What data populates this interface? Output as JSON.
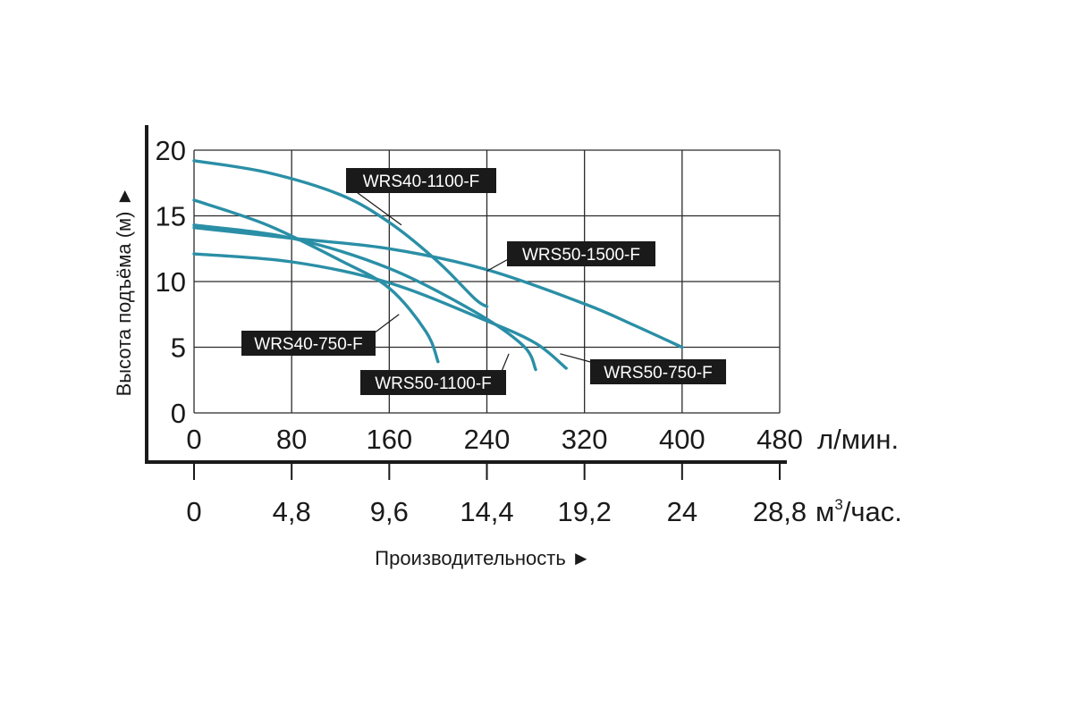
{
  "chart_data": {
    "type": "line",
    "title": "",
    "xlabel": "Производительность ►",
    "ylabel": "Высота подъёма (м) ►",
    "x_unit": "л/мин.",
    "x2_unit_base": "м",
    "x2_unit_sup": "3",
    "x2_unit_rest": "/час.",
    "xlim": [
      0,
      480
    ],
    "ylim": [
      0,
      20
    ],
    "x_ticks": [
      0,
      80,
      160,
      240,
      320,
      400,
      480
    ],
    "x_tick_labels": [
      "0",
      "80",
      "160",
      "240",
      "320",
      "400",
      "480"
    ],
    "x2_tick_labels": [
      "0",
      "4,8",
      "9,6",
      "14,4",
      "19,2",
      "24",
      "28,8"
    ],
    "y_ticks": [
      0,
      5,
      10,
      15,
      20
    ],
    "y_tick_labels": [
      "0",
      "5",
      "10",
      "15",
      "20"
    ],
    "grid": true,
    "line_color": "#2a8fa6",
    "label_bg": "#1a1a1a",
    "series": [
      {
        "name": "WRS40-1100-F",
        "points": [
          [
            0,
            19.2
          ],
          [
            60,
            18.3
          ],
          [
            120,
            16.6
          ],
          [
            160,
            14.5
          ],
          [
            200,
            11.5
          ],
          [
            230,
            8.7
          ],
          [
            240,
            8.1
          ]
        ],
        "label_anchor": [
          170,
          14.3
        ]
      },
      {
        "name": "WRS50-1500-F",
        "points": [
          [
            0,
            14.1
          ],
          [
            80,
            13.3
          ],
          [
            160,
            12.5
          ],
          [
            240,
            10.9
          ],
          [
            320,
            8.3
          ],
          [
            360,
            6.7
          ],
          [
            400,
            5.0
          ]
        ],
        "label_anchor": [
          240,
          10.8
        ]
      },
      {
        "name": "WRS40-750-F",
        "points": [
          [
            0,
            16.2
          ],
          [
            60,
            14.3
          ],
          [
            120,
            11.6
          ],
          [
            160,
            9.5
          ],
          [
            190,
            6.2
          ],
          [
            200,
            3.9
          ]
        ],
        "label_anchor": [
          168,
          7.5
        ]
      },
      {
        "name": "WRS50-1100-F",
        "points": [
          [
            0,
            14.3
          ],
          [
            80,
            13.3
          ],
          [
            160,
            11.0
          ],
          [
            230,
            7.7
          ],
          [
            270,
            5.1
          ],
          [
            280,
            3.3
          ]
        ],
        "label_anchor": [
          258,
          4.5
        ]
      },
      {
        "name": "WRS50-750-F",
        "points": [
          [
            0,
            12.1
          ],
          [
            80,
            11.5
          ],
          [
            160,
            9.9
          ],
          [
            240,
            7.0
          ],
          [
            280,
            5.3
          ],
          [
            305,
            3.4
          ]
        ],
        "label_anchor": [
          300,
          4.5
        ]
      }
    ]
  }
}
